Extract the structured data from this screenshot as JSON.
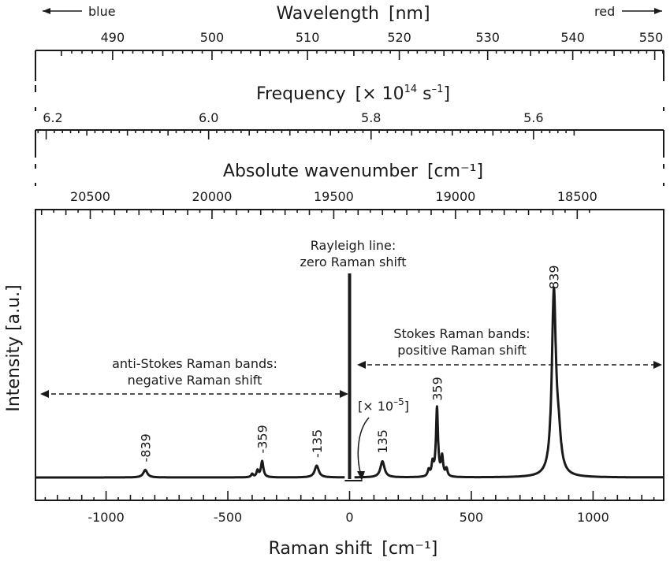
{
  "chart_data": {
    "type": "line",
    "ylabel": "Intensity [a.u.]",
    "xlabel": {
      "main": "Raman shift",
      "unit": "[cm⁻¹]"
    },
    "xlim": [
      -1290,
      1290
    ],
    "raman_ticks": [
      -1000,
      -500,
      0,
      500,
      1000
    ],
    "raman_tick_labels": [
      "-1000",
      "-500",
      "0",
      "500",
      "1000"
    ],
    "axes": {
      "wavelength": {
        "title_main": "Wavelength",
        "title_unit": "[nm]",
        "ticks": [
          490,
          500,
          510,
          520,
          530,
          540,
          550
        ],
        "tick_labels": [
          "490",
          "500",
          "510",
          "520",
          "530",
          "540",
          "550"
        ],
        "blue_label": "blue",
        "red_label": "red"
      },
      "frequency": {
        "title_main": "Frequency",
        "title_unit_pre": "[× 10",
        "title_unit_exp": "14",
        "title_unit_mid": " s",
        "title_unit_exp2": "–1",
        "title_unit_post": "]",
        "ticks": [
          6.2,
          6.0,
          5.8,
          5.6
        ],
        "tick_labels": [
          "6.2",
          "6.0",
          "5.8",
          "5.6"
        ]
      },
      "absolute_wavenumber": {
        "title_main": "Absolute wavenumber",
        "title_unit": "[cm⁻¹]",
        "ticks": [
          20500,
          20000,
          19500,
          19000,
          18500
        ],
        "tick_labels": [
          "20500",
          "20000",
          "19500",
          "19000",
          "18500"
        ]
      }
    },
    "laser_wavenumber": 19435,
    "baseline": 0.05,
    "rayleigh": {
      "x": 0,
      "height": 1.0
    },
    "peaks": [
      {
        "x": -839,
        "height": 0.085,
        "width": 10,
        "label": "-839"
      },
      {
        "x": -359,
        "height": 0.125,
        "width": 6,
        "label": "-359"
      },
      {
        "x": -135,
        "height": 0.105,
        "width": 10,
        "label": "-135"
      },
      {
        "x": 135,
        "height": 0.125,
        "width": 10,
        "label": "135"
      },
      {
        "x": 359,
        "height": 0.37,
        "width": 5,
        "label": "359"
      },
      {
        "x": 839,
        "height": 0.89,
        "width": 10,
        "label": "839"
      }
    ],
    "minor_peaks": [
      {
        "x": -400,
        "height": 0.065,
        "width": 5
      },
      {
        "x": -378,
        "height": 0.08,
        "width": 5
      },
      {
        "x": 325,
        "height": 0.08,
        "width": 5
      },
      {
        "x": 341,
        "height": 0.11,
        "width": 5
      },
      {
        "x": 380,
        "height": 0.14,
        "width": 5
      },
      {
        "x": 398,
        "height": 0.085,
        "width": 5
      },
      {
        "x": 858,
        "height": 0.2,
        "width": 12
      }
    ],
    "annotations": {
      "rayleigh_1": "Rayleigh line:",
      "rayleigh_2": "zero Raman shift",
      "stokes_1": "Stokes Raman bands:",
      "stokes_2": "positive Raman shift",
      "anti_1": "anti-Stokes Raman bands:",
      "anti_2": "negative Raman shift",
      "scale_pre": "[× 10",
      "scale_exp": "–5",
      "scale_post": "]"
    }
  }
}
